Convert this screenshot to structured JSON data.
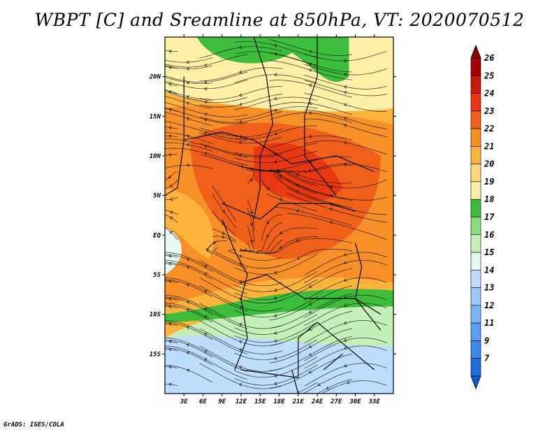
{
  "title": "WBPT [C] and Sreamline at 850hPa, VT: 2020070512",
  "credit": "GrADS: IGES/COLA",
  "map": {
    "lon_range": [
      0,
      36
    ],
    "lat_range": [
      -20,
      25
    ],
    "lat_ticks": [
      {
        "value": 20,
        "label": "20N"
      },
      {
        "value": 15,
        "label": "15N"
      },
      {
        "value": 10,
        "label": "10N"
      },
      {
        "value": 5,
        "label": "5N"
      },
      {
        "value": 0,
        "label": "EQ"
      },
      {
        "value": -5,
        "label": "5S"
      },
      {
        "value": -10,
        "label": "10S"
      },
      {
        "value": -15,
        "label": "15S"
      }
    ],
    "lon_ticks": [
      {
        "value": 3,
        "label": "3E"
      },
      {
        "value": 6,
        "label": "6E"
      },
      {
        "value": 9,
        "label": "9E"
      },
      {
        "value": 12,
        "label": "12E"
      },
      {
        "value": 15,
        "label": "15E"
      },
      {
        "value": 18,
        "label": "18E"
      },
      {
        "value": 21,
        "label": "21E"
      },
      {
        "value": 24,
        "label": "24E"
      },
      {
        "value": 27,
        "label": "27E"
      },
      {
        "value": 30,
        "label": "30E"
      },
      {
        "value": 33,
        "label": "33E"
      }
    ]
  },
  "colorbar": {
    "labels": [
      "7",
      "9",
      "11",
      "12",
      "13",
      "14",
      "15",
      "16",
      "17",
      "18",
      "19",
      "20",
      "21",
      "22",
      "23",
      "24",
      "25",
      "26"
    ],
    "colors": [
      "#1e6ede",
      "#3c8aee",
      "#5aa0f8",
      "#78b4fa",
      "#9cc8fc",
      "#bedcfe",
      "#e6f8f0",
      "#c4f0b8",
      "#8edc7c",
      "#3cbe3c",
      "#fff0a8",
      "#fcd87a",
      "#fcb43c",
      "#f89028",
      "#f06018",
      "#e83810",
      "#cc1a0a",
      "#a00000"
    ],
    "below_color": "#0a58d0",
    "above_color": "#8a0000"
  }
}
